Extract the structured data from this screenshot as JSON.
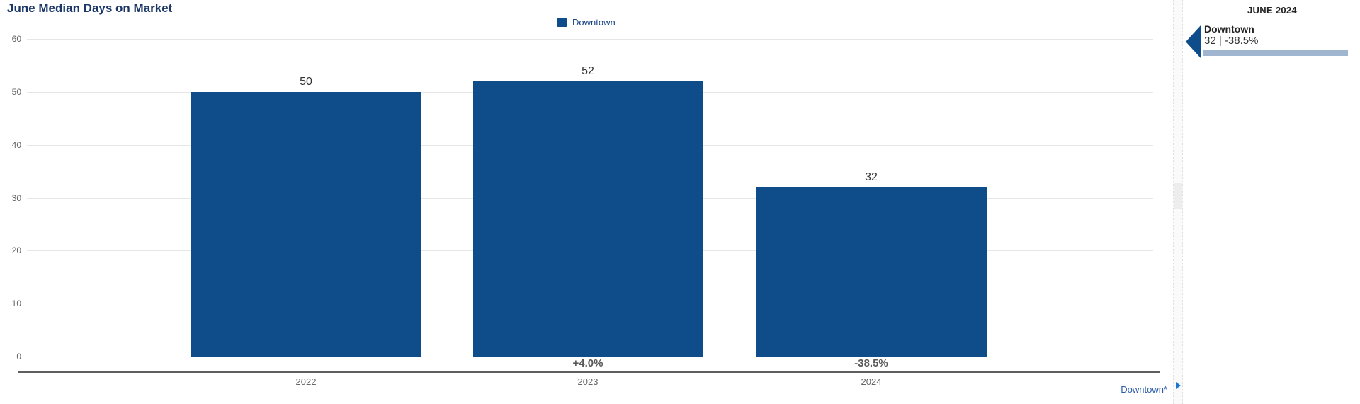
{
  "chart_data": {
    "type": "bar",
    "title": "June Median Days on Market",
    "categories": [
      "2022",
      "2023",
      "2024"
    ],
    "series": [
      {
        "name": "Downtown",
        "values": [
          50,
          52,
          32
        ],
        "color": "#0e4d8a"
      }
    ],
    "value_labels": [
      "50",
      "52",
      "32"
    ],
    "change_labels": [
      "",
      "+4.0%",
      "-38.5%"
    ],
    "xlabel": "",
    "ylabel": "",
    "ylim": [
      0,
      60
    ],
    "ytick_step": 10,
    "grid": true,
    "legend_position": "top-center",
    "footnote": "Downtown*"
  },
  "legend": {
    "items": [
      {
        "label": "Downtown",
        "color": "#0e4d8a"
      }
    ]
  },
  "splitter": {
    "icon": "chevron-right-icon"
  },
  "sidebar": {
    "header": "JUNE 2024",
    "entries": [
      {
        "name": "Downtown",
        "value": "32",
        "change": "-38.5%",
        "display": "32 | -38.5%",
        "marker_color": "#0e4d8a",
        "bar_color": "#a0b6d0"
      }
    ]
  },
  "colors": {
    "bar": "#0e4d8a",
    "title": "#1b3768",
    "footnote_link": "#2a5ca8",
    "sidebar_underline": "#a0b6d0",
    "splitter_arrow": "#1976d2"
  }
}
